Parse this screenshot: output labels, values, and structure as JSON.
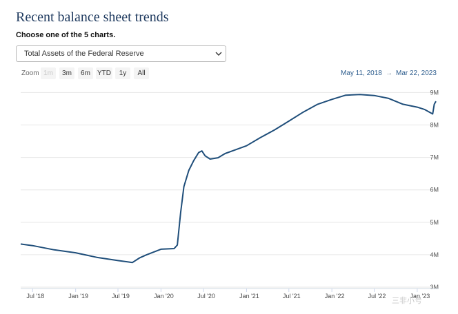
{
  "header": {
    "title": "Recent balance sheet trends",
    "subtitle": "Choose one of the 5 charts.",
    "select_value": "Total Assets of the Federal Reserve"
  },
  "toolbar": {
    "zoom_label": "Zoom",
    "buttons": [
      "1m",
      "3m",
      "6m",
      "YTD",
      "1y",
      "All"
    ],
    "disabled_button": "1m",
    "range_start": "May 11, 2018",
    "range_sep": "→",
    "range_end": "Mar 22, 2023"
  },
  "watermark": "三非小号",
  "colors": {
    "line": "#1f4e7a",
    "grid": "#e6e6e6",
    "title": "#1f3a5f"
  },
  "chart_data": {
    "type": "line",
    "title": "",
    "xlabel": "",
    "ylabel": "",
    "y_ticks": [
      3,
      4,
      5,
      6,
      7,
      8,
      9
    ],
    "y_tick_labels": [
      "3M",
      "4M",
      "5M",
      "6M",
      "7M",
      "8M",
      "9M"
    ],
    "ylim": [
      3,
      9.2
    ],
    "x_tick_labels": [
      "Jul '18",
      "Jan '19",
      "Jul '19",
      "Jan '20",
      "Jul '20",
      "Jan '21",
      "Jul '21",
      "Jan '22",
      "Jul '22",
      "Jan '23"
    ],
    "x_tick_dates": [
      "2018-07-01",
      "2019-01-01",
      "2019-07-01",
      "2020-01-01",
      "2020-07-01",
      "2021-01-01",
      "2021-07-01",
      "2022-01-01",
      "2022-07-01",
      "2023-01-01"
    ],
    "xlim": [
      "2018-05-11",
      "2023-03-22"
    ],
    "grid": true,
    "legend": "none",
    "series": [
      {
        "x": [
          "2018-05-11",
          "2018-07-01",
          "2018-10-01",
          "2019-01-01",
          "2019-04-01",
          "2019-07-01",
          "2019-09-01",
          "2019-10-01",
          "2019-11-01",
          "2020-01-01",
          "2020-02-26",
          "2020-03-11",
          "2020-03-25",
          "2020-04-08",
          "2020-04-29",
          "2020-05-20",
          "2020-06-10",
          "2020-06-24",
          "2020-07-08",
          "2020-07-29",
          "2020-09-01",
          "2020-10-01",
          "2020-11-01",
          "2021-01-01",
          "2021-03-01",
          "2021-05-01",
          "2021-07-01",
          "2021-09-01",
          "2021-11-01",
          "2022-01-01",
          "2022-03-01",
          "2022-05-01",
          "2022-07-01",
          "2022-09-01",
          "2022-11-01",
          "2023-01-01",
          "2023-02-01",
          "2023-03-08",
          "2023-03-15",
          "2023-03-22"
        ],
        "y": [
          4.33,
          4.28,
          4.15,
          4.06,
          3.92,
          3.82,
          3.76,
          3.9,
          4.0,
          4.17,
          4.19,
          4.3,
          5.3,
          6.1,
          6.6,
          6.9,
          7.15,
          7.2,
          7.05,
          6.95,
          6.99,
          7.12,
          7.2,
          7.36,
          7.61,
          7.85,
          8.12,
          8.4,
          8.64,
          8.79,
          8.92,
          8.94,
          8.91,
          8.82,
          8.64,
          8.55,
          8.48,
          8.34,
          8.64,
          8.73
        ]
      }
    ]
  }
}
